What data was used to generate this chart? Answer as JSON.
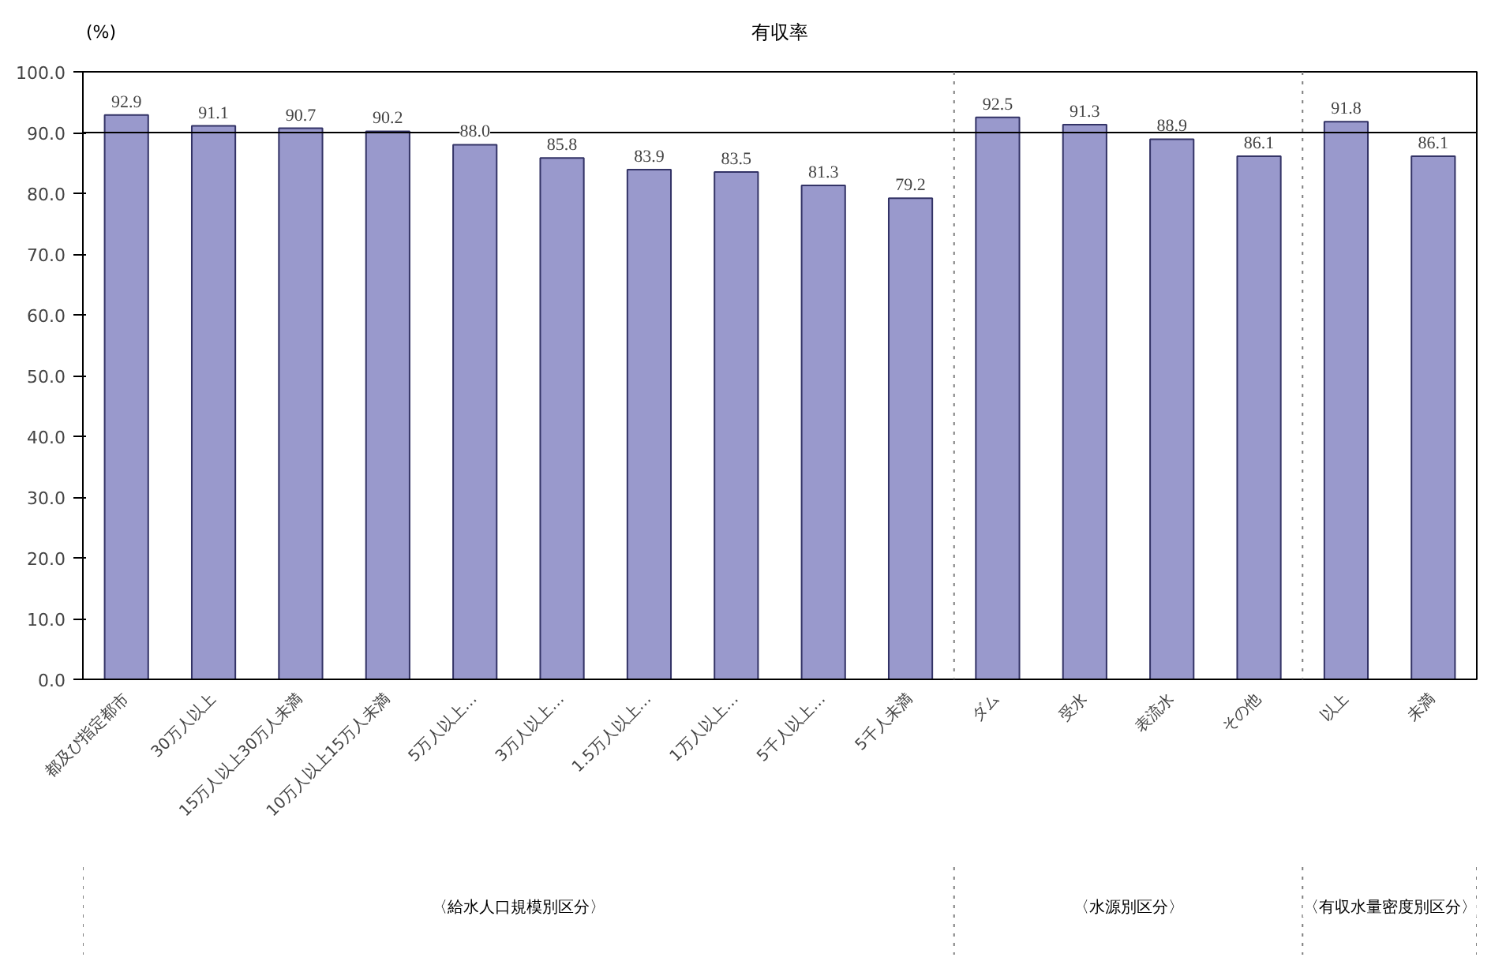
{
  "chart_data": {
    "type": "bar",
    "title": "有収率",
    "ylabel": "(%)",
    "categories": [
      "都及び指定都市",
      "30万人以上",
      "15万人以上30万人未満",
      "10万人以上15万人未満",
      "5万人以上…",
      "3万人以上…",
      "1.5万人以上…",
      "1万人以上…",
      "5千人以上…",
      "5千人未満",
      "ダム",
      "受水",
      "表流水",
      "その他",
      "以上",
      "未満"
    ],
    "values": [
      92.9,
      91.1,
      90.7,
      90.2,
      88.0,
      85.8,
      83.9,
      83.5,
      81.3,
      79.2,
      92.5,
      91.3,
      88.9,
      86.1,
      91.8,
      86.1
    ],
    "value_labels": [
      "92.9",
      "91.1",
      "90.7",
      "90.2",
      "88.0",
      "85.8",
      "83.9",
      "83.5",
      "81.3",
      "79.2",
      "92.5",
      "91.3",
      "88.9",
      "86.1",
      "91.8",
      "86.1"
    ],
    "color": "#9999cc",
    "ylim": [
      0,
      100
    ],
    "yticks": [
      {
        "value": 0,
        "label": "0.0"
      },
      {
        "value": 10,
        "label": "10.0"
      },
      {
        "value": 20,
        "label": "20.0"
      },
      {
        "value": 30,
        "label": "30.0"
      },
      {
        "value": 40,
        "label": "40.0"
      },
      {
        "value": 50,
        "label": "50.0"
      },
      {
        "value": 60,
        "label": "60.0"
      },
      {
        "value": 70,
        "label": "70.0"
      },
      {
        "value": 80,
        "label": "80.0"
      },
      {
        "value": 90,
        "label": "90.0"
      },
      {
        "value": 100,
        "label": "100.0"
      }
    ],
    "ref_lines": [
      {
        "axis": "y",
        "value": 90,
        "color": "#000000",
        "line_style": "solid"
      }
    ],
    "annotations": [
      "〈給水人口規模別区分〉",
      "〈水源別区分〉",
      "〈有収水量密度別区分〉"
    ],
    "grid": false,
    "legend": false
  }
}
